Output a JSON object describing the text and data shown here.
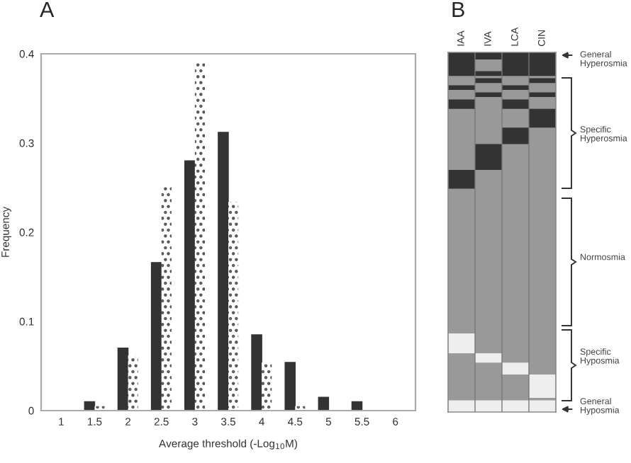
{
  "chart_data": [
    {
      "type": "bar",
      "title": "A",
      "xlabel": "Average threshold (-Log$_{10}$M)",
      "ylabel": "Frequency",
      "categories": [
        "1",
        "1.5",
        "2",
        "2.5",
        "3",
        "3.5",
        "4",
        "4.5",
        "5",
        "5.5",
        "6"
      ],
      "series": [
        {
          "color": "#333333",
          "values": [
            0,
            0.01,
            0.07,
            0.166,
            0.28,
            0.312,
            0.085,
            0.054,
            0.015,
            0.01,
            0
          ]
        },
        {
          "color": "#ffffff",
          "values": [
            0,
            0.005,
            0.062,
            0.252,
            0.39,
            0.234,
            0.054,
            0.005,
            0,
            0,
            0
          ]
        }
      ],
      "ylim": [
        0,
        0.4
      ],
      "yticks": [
        0,
        0.1,
        0.2,
        0.3,
        0.4
      ],
      "grid": false,
      "legend": false
    },
    {
      "type": "other",
      "title": "B",
      "categories": [
        "IAA",
        "IVA",
        "LCA",
        "CIN"
      ],
      "annotations": [
        "General Hyperosmia",
        "Specific Hyperosmia",
        "Normosmia",
        "Specific Hyposmia",
        "General Hyposmia"
      ]
    }
  ]
}
